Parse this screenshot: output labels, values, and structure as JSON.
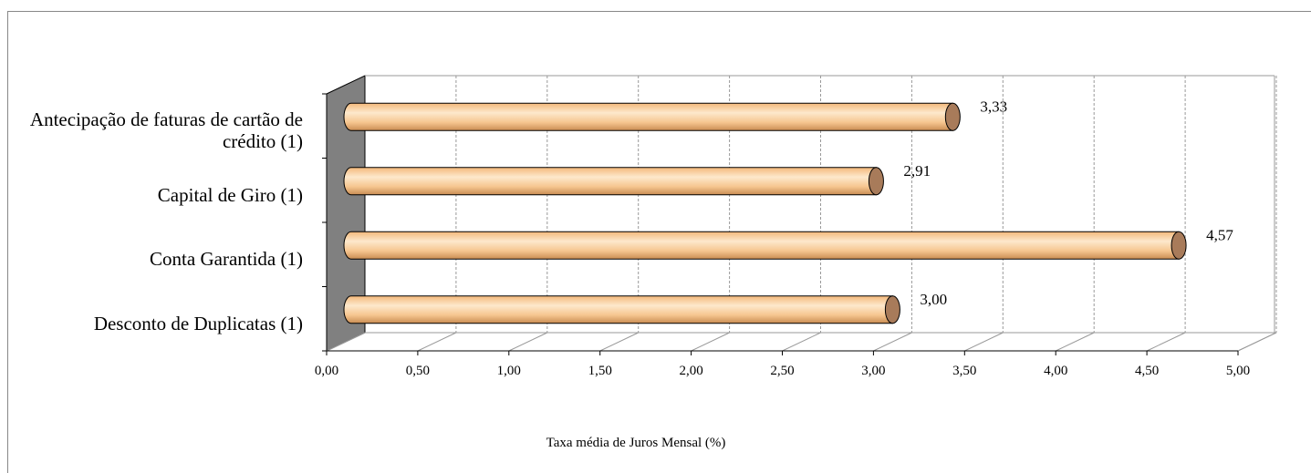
{
  "chart_data": {
    "type": "bar",
    "orientation": "horizontal",
    "categories": [
      "Antecipação de faturas de cartão de crédito (1)",
      "Capital de Giro (1)",
      "Conta Garantida (1)",
      "Desconto de Duplicatas (1)"
    ],
    "values": [
      3.33,
      2.91,
      4.57,
      3.0
    ],
    "value_labels": [
      "3,33",
      "2,91",
      "4,57",
      "3,00"
    ],
    "color": "#f6c690",
    "xlim": [
      0,
      5
    ],
    "xticks": [
      {
        "value": 0,
        "label": "0,00"
      },
      {
        "value": 0.5,
        "label": "0,50"
      },
      {
        "value": 1,
        "label": "1,00"
      },
      {
        "value": 1.5,
        "label": "1,50"
      },
      {
        "value": 2,
        "label": "2,00"
      },
      {
        "value": 2.5,
        "label": "2,50"
      },
      {
        "value": 3,
        "label": "3,00"
      },
      {
        "value": 3.5,
        "label": "3,50"
      },
      {
        "value": 4,
        "label": "4,00"
      },
      {
        "value": 4.5,
        "label": "4,50"
      },
      {
        "value": 5,
        "label": "5,00"
      }
    ],
    "xlabel": "Taxa média de Juros Mensal (%)",
    "grid": true
  }
}
